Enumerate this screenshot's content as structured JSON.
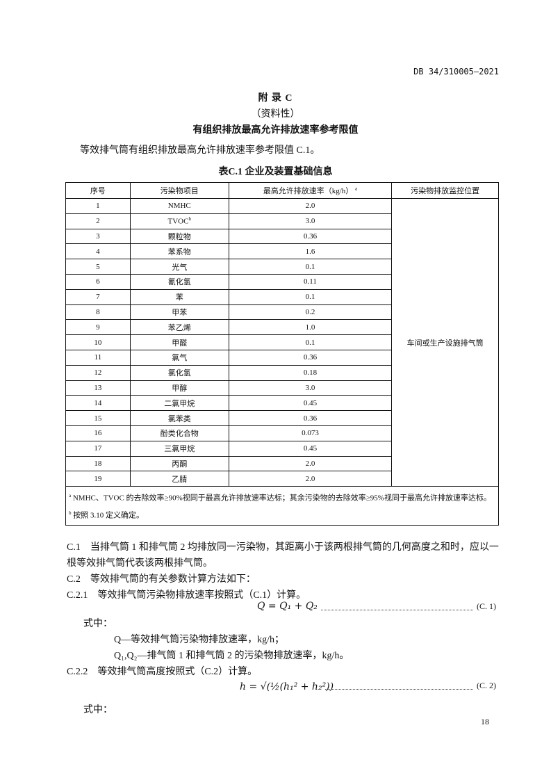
{
  "header": {
    "doc_number": "DB 34/310005—2021"
  },
  "appendix": {
    "title": "附 录 C",
    "subtitle": "（资料性）",
    "heading": "有组织排放最高允许排放速率参考限值"
  },
  "intro": "等效排气筒有组织排放最高允许排放速率参考限值 C.1。",
  "table": {
    "caption": "表C.1 企业及装置基础信息",
    "columns": [
      "序号",
      "污染物项目",
      "最高允许排放速率（kg/h）",
      "污染物排放监控位置"
    ],
    "column3_note": "a",
    "monitor_location": "车间或生产设施排气筒",
    "rows": [
      [
        "1",
        "NMHC",
        "2.0"
      ],
      [
        "2",
        "TVOC",
        "3.0"
      ],
      [
        "3",
        "颗粒物",
        "0.36"
      ],
      [
        "4",
        "苯系物",
        "1.6"
      ],
      [
        "5",
        "光气",
        "0.1"
      ],
      [
        "6",
        "氰化氢",
        "0.11"
      ],
      [
        "7",
        "苯",
        "0.1"
      ],
      [
        "8",
        "甲苯",
        "0.2"
      ],
      [
        "9",
        "苯乙烯",
        "1.0"
      ],
      [
        "10",
        "甲醛",
        "0.1"
      ],
      [
        "11",
        "氯气",
        "0.36"
      ],
      [
        "12",
        "氯化氢",
        "0.18"
      ],
      [
        "13",
        "甲醇",
        "3.0"
      ],
      [
        "14",
        "二氯甲烷",
        "0.45"
      ],
      [
        "15",
        "氯苯类",
        "0.36"
      ],
      [
        "16",
        "酚类化合物",
        "0.073"
      ],
      [
        "17",
        "三氯甲烷",
        "0.45"
      ],
      [
        "18",
        "丙酮",
        "2.0"
      ],
      [
        "19",
        "乙腈",
        "2.0"
      ]
    ],
    "tvoc_note": "b",
    "notes": [
      {
        "mark": "a",
        "text": "NMHC、TVOC 的去除效率≥90%视同于最高允许排放速率达标；其余污染物的去除效率≥95%视同于最高允许排放速率达标。"
      },
      {
        "mark": "b",
        "text": "按照 3.10 定义确定。"
      }
    ]
  },
  "body": {
    "c1_line1": "C.1　当排气筒 1 和排气筒 2 均排放同一污染物，其距离小于该两根排气筒的几何高度之和时，应以一",
    "c1_line2": "根等效排气筒代表该两根排气筒。",
    "c2": "C.2　等效排气筒的有关参数计算方法如下：",
    "c21": "C.2.1　等效排气筒污染物排放速率按照式（C.1）计算。",
    "eq1": "Q = Q₁ + Q₂",
    "eq1_no": "(C. 1)",
    "where1": "式中：",
    "def_q": "Q—等效排气筒污染物排放速率，kg/h；",
    "def_q12": "Q₁,Q₂—排气筒 1 和排气筒 2 的污染物排放速率，kg/h。",
    "c22": "C.2.2　等效排气筒高度按照式（C.2）计算。",
    "eq2": "h = √(½(h₁² + h₂²))",
    "eq2_no": "(C. 2)",
    "where2": "式中："
  },
  "footer": {
    "page_number": "18"
  }
}
